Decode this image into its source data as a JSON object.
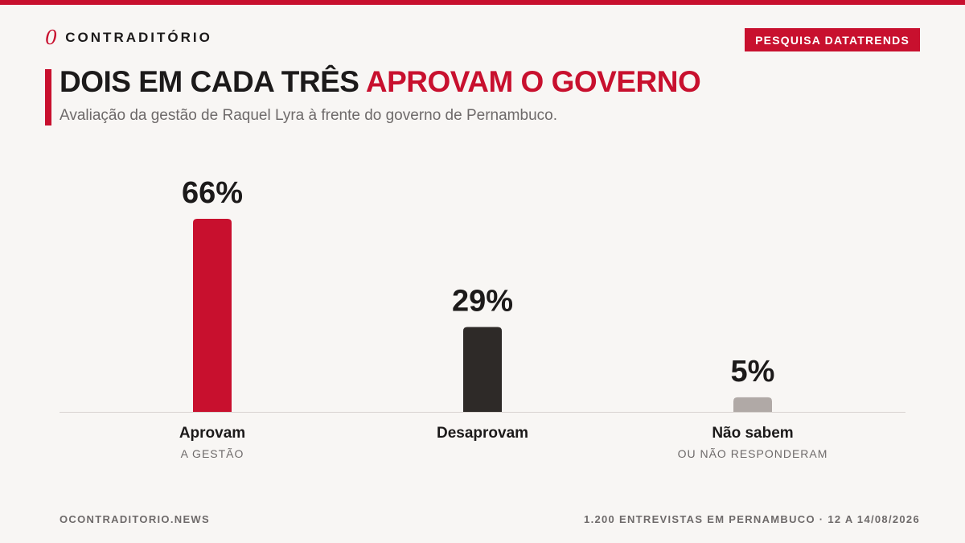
{
  "brand": {
    "mark": "0",
    "name": "CONTRADITÓRIO"
  },
  "badge": "PESQUISA DATATRENDS",
  "title": {
    "main": "DOIS EM CADA TRÊS ",
    "highlight": "APROVAM O GOVERNO"
  },
  "subtitle": "Avaliação da gestão de Raquel Lyra à frente do governo de Pernambuco.",
  "colors": {
    "accent": "#c8102e",
    "dark": "#2e2a28",
    "muted": "#b0a9a6",
    "baseline": "#d9d4d1"
  },
  "chart_data": {
    "type": "bar",
    "categories": [
      "Aprovam",
      "Desaprovam",
      "Não sabem"
    ],
    "subcategories": [
      "A GESTÃO",
      "",
      "OU NÃO RESPONDERAM"
    ],
    "values": [
      66,
      29,
      5
    ],
    "value_labels": [
      "66%",
      "29%",
      "5%"
    ],
    "bar_colors": [
      "#c8102e",
      "#2e2a28",
      "#b0a9a6"
    ],
    "unit": "%",
    "ylim": [
      0,
      100
    ],
    "grid": false,
    "legend": "none",
    "title": "DOIS EM CADA TRÊS APROVAM O GOVERNO",
    "xlabel": "",
    "ylabel": ""
  },
  "footer": {
    "source": "OCONTRADITORIO.NEWS",
    "note": "1.200 ENTREVISTAS EM PERNAMBUCO · 12 A 14/08/2026"
  }
}
